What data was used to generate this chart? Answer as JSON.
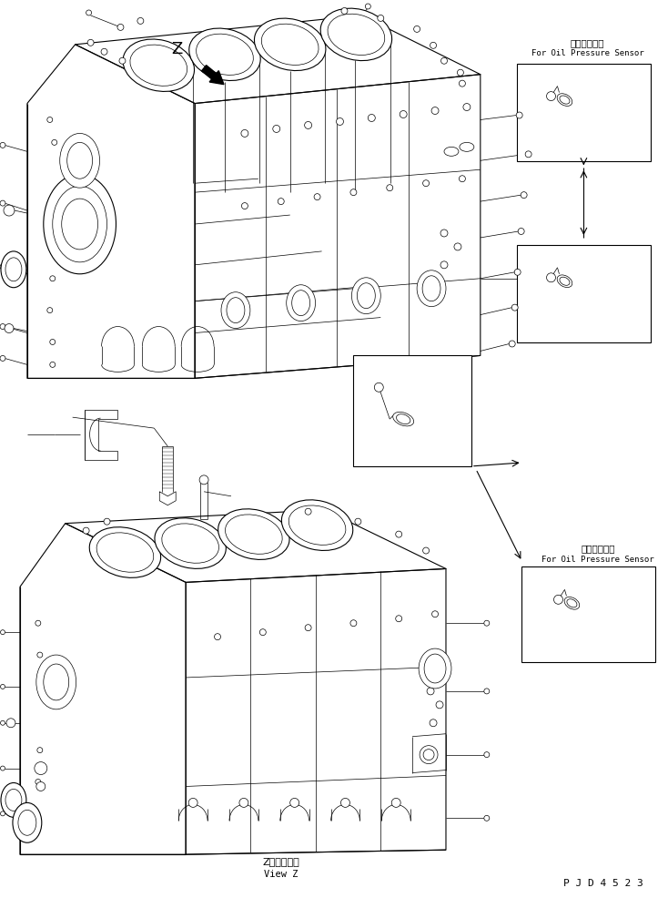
{
  "background": "#ffffff",
  "line_color": "#000000",
  "lw_main": 0.8,
  "lw_thin": 0.5,
  "fig_width": 7.34,
  "fig_height": 9.86,
  "dpi": 100,
  "text_jp1": "油圧センサ用",
  "text_en1": "For Oil Pressure Sensor",
  "text_jp2": "油圧センサ用",
  "text_en2": "For Oil Pressure Sensor",
  "view_jp": "Z　視",
  "view_en": "View Z",
  "part_no": "P J D 4 5 2 3",
  "z_label": "Z"
}
